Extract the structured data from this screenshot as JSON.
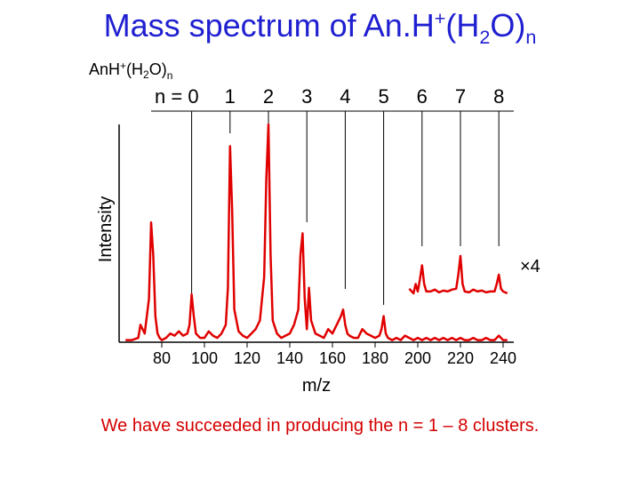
{
  "slide": {
    "title_main": "Mass spectrum of An.H",
    "title_sup": "+",
    "title_paren_open": "(H",
    "title_sub2": "2",
    "title_paren_close": "O)",
    "title_n": "n",
    "caption": "We have succeeded in producing the n = 1 – 8 clusters."
  },
  "chart_data": {
    "type": "line",
    "title": "",
    "xlabel": "m/z",
    "ylabel": "Intensity",
    "xlim": [
      60,
      245
    ],
    "ylim": [
      0,
      100
    ],
    "xticks": [
      80,
      100,
      120,
      140,
      160,
      180,
      200,
      220,
      240
    ],
    "grid": false,
    "species_label": {
      "main": "AnH",
      "sup": "+",
      "open": "(H",
      "sub": "2",
      "close": "O)",
      "n": "n"
    },
    "n_prefix": "n = ",
    "cluster_markers": [
      {
        "n": "0",
        "mz": 94
      },
      {
        "n": "1",
        "mz": 112
      },
      {
        "n": "2",
        "mz": 130
      },
      {
        "n": "3",
        "mz": 148
      },
      {
        "n": "4",
        "mz": 166
      },
      {
        "n": "5",
        "mz": 184
      },
      {
        "n": "6",
        "mz": 202
      },
      {
        "n": "7",
        "mz": 220
      },
      {
        "n": "8",
        "mz": 238
      }
    ],
    "scale_label": "×4",
    "series": [
      {
        "color": "#e00000",
        "x": [
          63,
          66,
          69,
          70,
          72,
          74,
          75,
          76,
          77,
          78,
          79,
          80,
          82,
          84,
          86,
          88,
          90,
          92,
          93,
          94,
          95,
          96,
          98,
          100,
          102,
          104,
          106,
          108,
          110,
          111,
          112,
          113,
          114,
          116,
          118,
          120,
          122,
          124,
          126,
          128,
          129,
          130,
          131,
          132,
          134,
          136,
          138,
          140,
          142,
          144,
          145,
          146,
          147,
          148,
          149,
          150,
          152,
          154,
          156,
          158,
          160,
          162,
          164,
          165,
          166,
          167,
          168,
          170,
          172,
          174,
          176,
          178,
          180,
          182,
          183,
          184,
          185,
          186,
          188,
          190,
          192,
          194,
          196,
          198,
          200,
          202,
          204,
          206,
          208,
          210,
          212,
          214,
          216,
          218,
          220,
          222,
          224,
          226,
          228,
          230,
          232,
          234,
          236,
          238,
          240,
          242
        ],
        "y": [
          1,
          1,
          2,
          8,
          4,
          20,
          55,
          40,
          12,
          4,
          2,
          1,
          2,
          4,
          3,
          5,
          3,
          4,
          8,
          22,
          12,
          4,
          2,
          2,
          5,
          3,
          2,
          4,
          8,
          25,
          90,
          60,
          15,
          5,
          3,
          2,
          4,
          6,
          10,
          30,
          75,
          100,
          40,
          10,
          4,
          2,
          3,
          4,
          8,
          15,
          40,
          50,
          20,
          6,
          25,
          10,
          4,
          3,
          2,
          6,
          4,
          8,
          12,
          15,
          8,
          4,
          3,
          2,
          2,
          6,
          4,
          3,
          2,
          3,
          6,
          12,
          4,
          2,
          1,
          2,
          1,
          3,
          2,
          1,
          2,
          1,
          2,
          1,
          2,
          1,
          2,
          1,
          2,
          1,
          2,
          1,
          1,
          2,
          1,
          1,
          2,
          1,
          1,
          3,
          1,
          1
        ]
      },
      {
        "name": "×4",
        "color": "#e00000",
        "x": [
          196,
          198,
          199,
          200,
          201,
          202,
          203,
          204,
          206,
          208,
          210,
          212,
          214,
          216,
          218,
          219,
          220,
          221,
          222,
          224,
          226,
          228,
          230,
          232,
          234,
          236,
          237,
          238,
          239,
          240,
          242
        ],
        "y": [
          25,
          20,
          30,
          22,
          35,
          50,
          30,
          22,
          22,
          24,
          21,
          23,
          22,
          24,
          25,
          40,
          60,
          30,
          22,
          21,
          24,
          22,
          23,
          21,
          22,
          22,
          30,
          40,
          25,
          22,
          20
        ]
      }
    ]
  }
}
